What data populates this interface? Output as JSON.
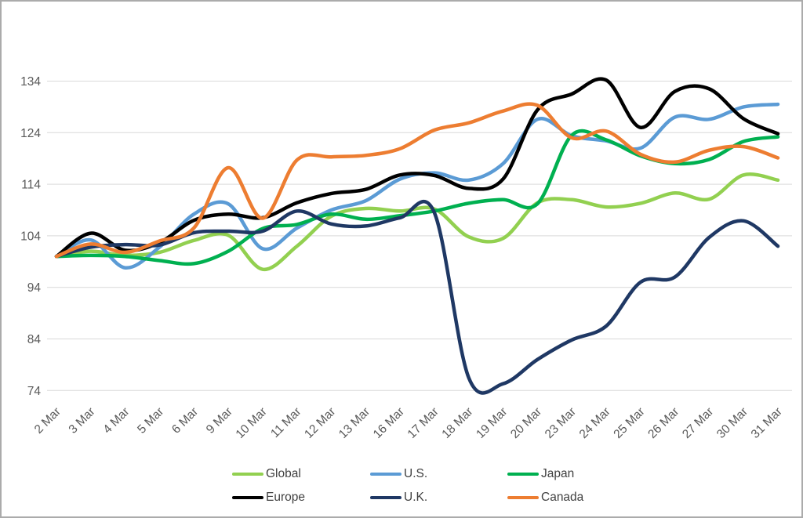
{
  "chart_data": {
    "type": "line",
    "title": "",
    "xlabel": "",
    "ylabel": "",
    "smooth": true,
    "grid": true,
    "legend_position": "bottom",
    "x_categories": [
      "2 Mar",
      "3 Mar",
      "4 Mar",
      "5 Mar",
      "6 Mar",
      "9 Mar",
      "10 Mar",
      "11 Mar",
      "12 Mar",
      "13 Mar",
      "16 Mar",
      "17 Mar",
      "18 Mar",
      "19 Mar",
      "20 Mar",
      "23 Mar",
      "24 Mar",
      "25 Mar",
      "26 Mar",
      "27 Mar",
      "30 Mar",
      "31 Mar"
    ],
    "y_ticks": [
      134,
      124,
      114,
      104,
      94,
      84,
      74
    ],
    "ylim": [
      74,
      134
    ],
    "series": [
      {
        "name": "Global",
        "color": "#92d050",
        "values": [
          100,
          101,
          100.2,
          100.8,
          103.1,
          104.1,
          97.5,
          102,
          107.8,
          109.3,
          108.8,
          109.2,
          103.8,
          103.5,
          110.4,
          111,
          109.6,
          110.3,
          112.3,
          111.1,
          115.8,
          114.8
        ]
      },
      {
        "name": "U.S.",
        "color": "#5b9bd5",
        "values": [
          100,
          103.2,
          97.8,
          101.8,
          108.2,
          110.2,
          101.5,
          105.5,
          109,
          110.8,
          115,
          116.2,
          114.8,
          118,
          126.6,
          123.4,
          122.4,
          121,
          127,
          126.6,
          129,
          129.5
        ]
      },
      {
        "name": "Japan",
        "color": "#00b050",
        "values": [
          100,
          100.2,
          100,
          99.2,
          98.6,
          101,
          105.4,
          106.2,
          108.2,
          107.2,
          107.9,
          108.8,
          110.3,
          111,
          110.2,
          123.5,
          122.6,
          119.5,
          118,
          118.8,
          122.3,
          123.2
        ]
      },
      {
        "name": "Europe",
        "color": "#000000",
        "values": [
          100,
          104.5,
          101.2,
          102.7,
          107,
          108.2,
          107.5,
          110.4,
          112.2,
          113,
          115.8,
          115.7,
          113.2,
          115,
          128.4,
          131.5,
          134.2,
          125,
          132,
          132.5,
          126.7,
          123.8
        ]
      },
      {
        "name": "U.K.",
        "color": "#1f3864",
        "values": [
          100,
          101.8,
          102.3,
          102.2,
          104.6,
          104.9,
          104.9,
          108.8,
          106.3,
          105.9,
          107.5,
          108.5,
          76.5,
          75.3,
          80,
          83.8,
          86.5,
          95,
          96,
          103.7,
          106.9,
          102
        ]
      },
      {
        "name": "Canada",
        "color": "#ed7d31",
        "values": [
          100,
          102.4,
          100.8,
          103,
          105.5,
          117.2,
          107.4,
          118.7,
          119.3,
          119.6,
          120.9,
          124.5,
          125.9,
          128.2,
          129.3,
          123,
          124.3,
          119.8,
          118.3,
          120.6,
          121.3,
          119.1
        ]
      }
    ],
    "style": {
      "grid_color": "#d9d9d9",
      "axis_text_color": "#595959",
      "legend_text_color": "#404040",
      "frame_border_color": "#ababab",
      "line_width": 4.5
    }
  }
}
